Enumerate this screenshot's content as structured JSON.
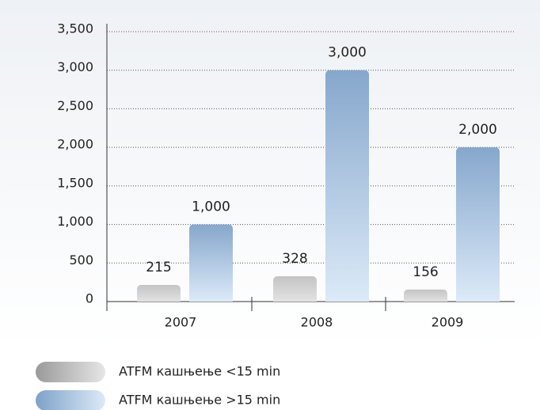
{
  "chart_data": {
    "type": "bar",
    "categories": [
      "2007",
      "2008",
      "2009"
    ],
    "series": [
      {
        "name": "ATFM кашњење <15 min",
        "color": "#c4c4c4",
        "values": [
          215,
          328,
          156
        ]
      },
      {
        "name": "ATFM кашњење >15 min",
        "color": "#86a7cc",
        "values": [
          1000,
          3000,
          2000
        ],
        "value_labels": [
          "1,000",
          "3,000",
          "2,000"
        ]
      }
    ],
    "ylim": [
      0,
      3500
    ],
    "yticks": [
      0,
      500,
      {
        "value": 1000,
        "label": "1,000"
      },
      {
        "value": 1500,
        "label": "1,500"
      },
      {
        "value": 2000,
        "label": "2,000"
      },
      {
        "value": 2500,
        "label": "2,500"
      },
      {
        "value": 3000,
        "label": "3,000"
      },
      {
        "value": 3500,
        "label": "3,500"
      }
    ],
    "grid": true
  }
}
